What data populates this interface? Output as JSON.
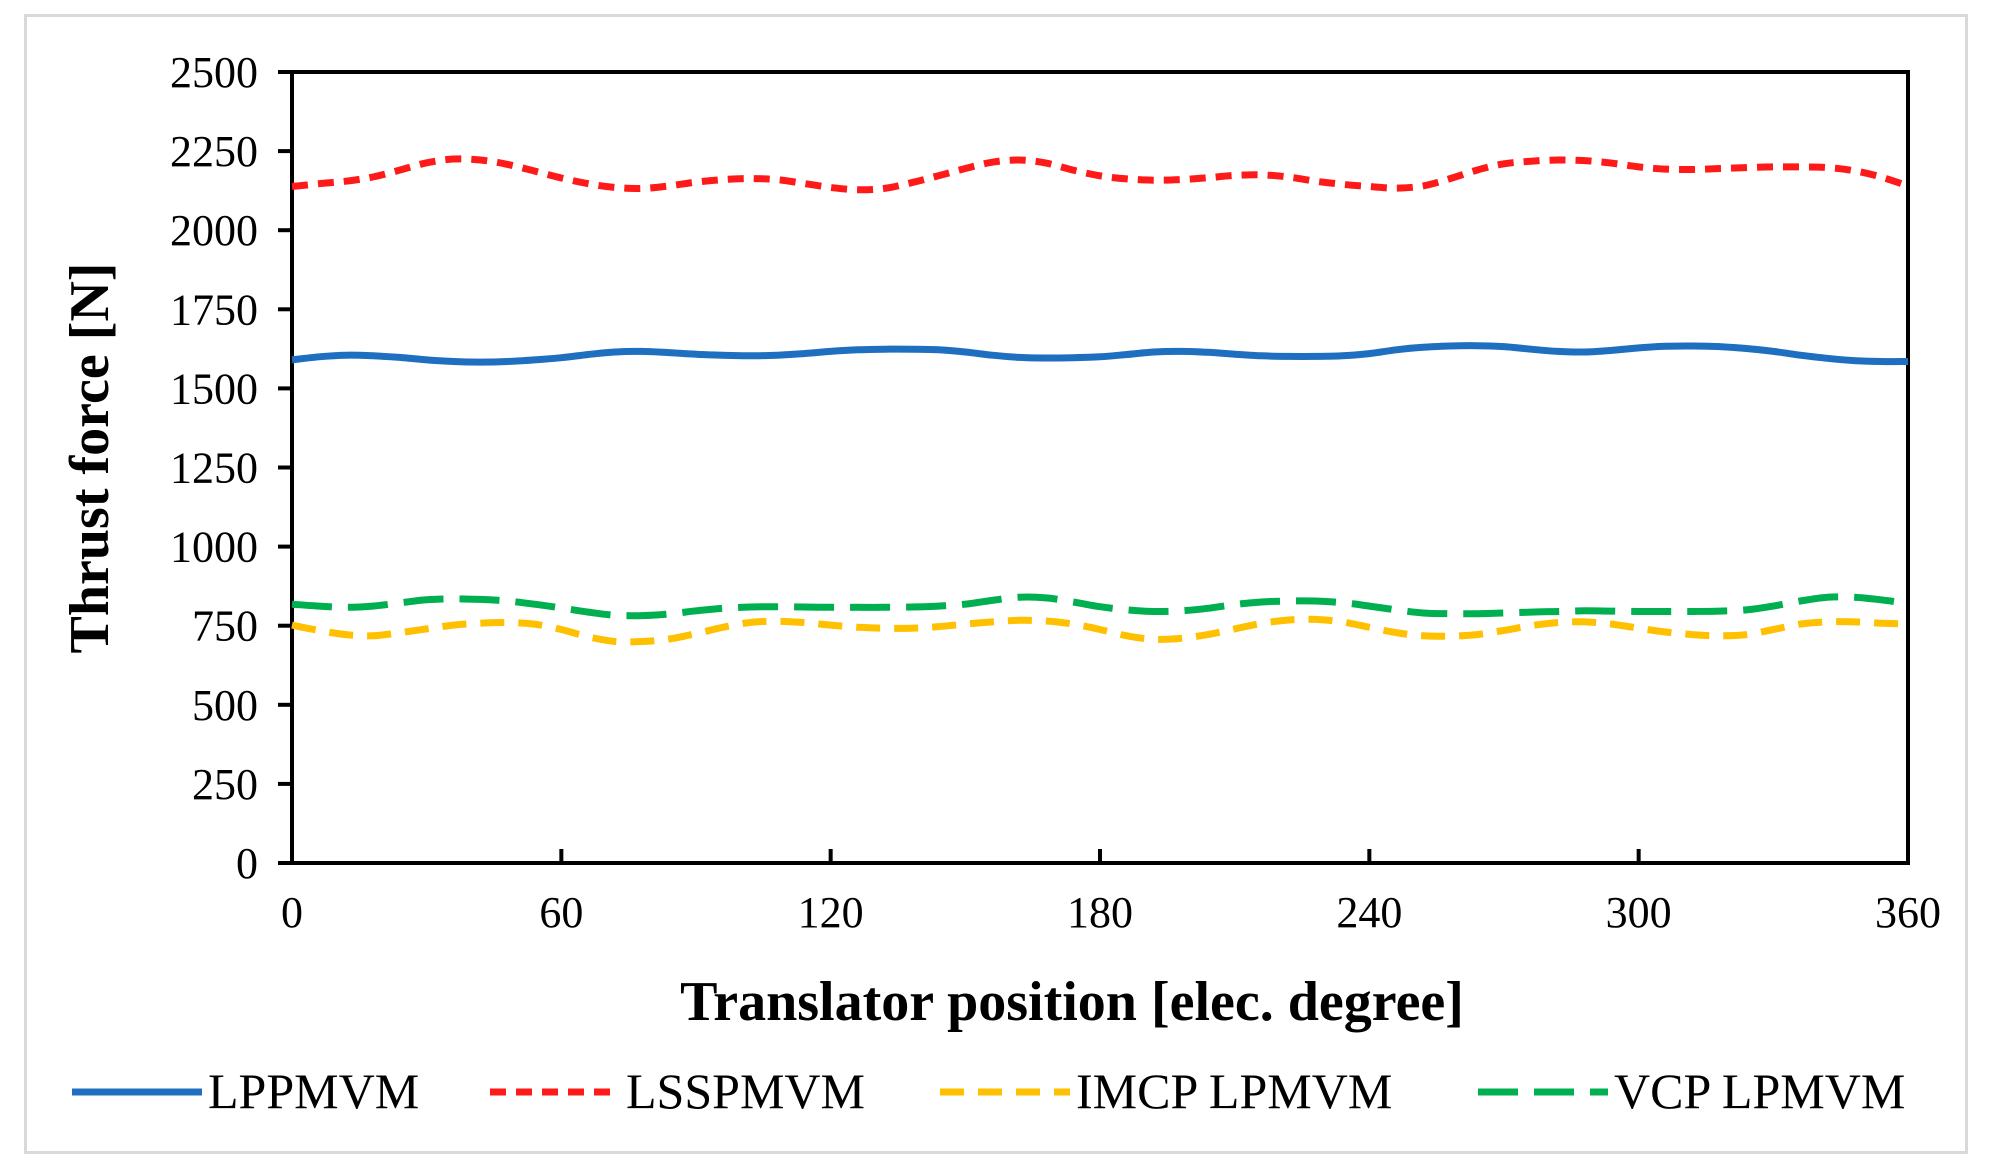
{
  "chart_data": {
    "type": "line",
    "title": "",
    "xlabel": "Translator position [elec. degree]",
    "ylabel": "Thrust force [N]",
    "xlim": [
      0,
      360
    ],
    "ylim": [
      0,
      2500
    ],
    "xticks": [
      0,
      60,
      120,
      180,
      240,
      300,
      360
    ],
    "yticks": [
      0,
      250,
      500,
      750,
      1000,
      1250,
      1500,
      1750,
      2000,
      2250,
      2500
    ],
    "grid": false,
    "legend_position": "bottom",
    "x": [
      0,
      6,
      12,
      18,
      24,
      30,
      36,
      42,
      48,
      54,
      60,
      66,
      72,
      78,
      84,
      90,
      96,
      102,
      108,
      114,
      120,
      126,
      132,
      138,
      144,
      150,
      156,
      162,
      168,
      174,
      180,
      186,
      192,
      198,
      204,
      210,
      216,
      222,
      228,
      234,
      240,
      246,
      252,
      258,
      264,
      270,
      276,
      282,
      288,
      294,
      300,
      306,
      312,
      318,
      324,
      330,
      336,
      342,
      348,
      354,
      360
    ],
    "series": [
      {
        "name": "LPPMVM",
        "color": "#1f6fc0",
        "dash": "solid",
        "values": [
          1590,
          1600,
          1605,
          1603,
          1598,
          1590,
          1585,
          1583,
          1585,
          1590,
          1597,
          1607,
          1615,
          1617,
          1613,
          1608,
          1605,
          1603,
          1605,
          1610,
          1617,
          1622,
          1624,
          1624,
          1622,
          1615,
          1605,
          1598,
          1596,
          1597,
          1600,
          1607,
          1615,
          1617,
          1614,
          1608,
          1603,
          1601,
          1601,
          1603,
          1610,
          1622,
          1630,
          1634,
          1635,
          1632,
          1624,
          1617,
          1615,
          1620,
          1628,
          1633,
          1634,
          1632,
          1626,
          1617,
          1605,
          1595,
          1588,
          1585,
          1585
        ]
      },
      {
        "name": "LSSPMVM",
        "color": "#ff1a1a",
        "dash": "short",
        "values": [
          2138,
          2147,
          2155,
          2168,
          2190,
          2213,
          2225,
          2222,
          2208,
          2187,
          2165,
          2147,
          2135,
          2132,
          2140,
          2152,
          2160,
          2163,
          2160,
          2148,
          2135,
          2128,
          2132,
          2150,
          2172,
          2195,
          2215,
          2222,
          2212,
          2190,
          2172,
          2162,
          2158,
          2160,
          2166,
          2173,
          2175,
          2168,
          2155,
          2145,
          2138,
          2133,
          2140,
          2163,
          2190,
          2210,
          2218,
          2222,
          2220,
          2212,
          2200,
          2193,
          2192,
          2195,
          2198,
          2200,
          2200,
          2198,
          2188,
          2168,
          2140
        ]
      },
      {
        "name": "IMCP LPMVM",
        "color": "#ffc000",
        "dash": "medium",
        "values": [
          752,
          735,
          722,
          718,
          728,
          740,
          752,
          758,
          760,
          755,
          738,
          715,
          700,
          700,
          708,
          725,
          745,
          760,
          764,
          760,
          752,
          745,
          742,
          742,
          747,
          755,
          762,
          767,
          765,
          755,
          738,
          718,
          707,
          710,
          722,
          740,
          757,
          768,
          770,
          762,
          745,
          728,
          718,
          717,
          722,
          735,
          750,
          760,
          762,
          755,
          742,
          730,
          722,
          718,
          722,
          738,
          755,
          762,
          762,
          758,
          755
        ]
      },
      {
        "name": "VCP LPMVM",
        "color": "#00b050",
        "dash": "long",
        "values": [
          818,
          812,
          808,
          812,
          822,
          832,
          835,
          833,
          828,
          818,
          806,
          793,
          783,
          782,
          787,
          797,
          805,
          809,
          810,
          809,
          808,
          808,
          808,
          809,
          812,
          818,
          830,
          840,
          838,
          825,
          810,
          800,
          795,
          797,
          805,
          817,
          825,
          828,
          828,
          823,
          812,
          800,
          790,
          788,
          788,
          790,
          793,
          795,
          797,
          796,
          795,
          795,
          795,
          796,
          800,
          812,
          828,
          840,
          840,
          832,
          820
        ]
      }
    ]
  }
}
